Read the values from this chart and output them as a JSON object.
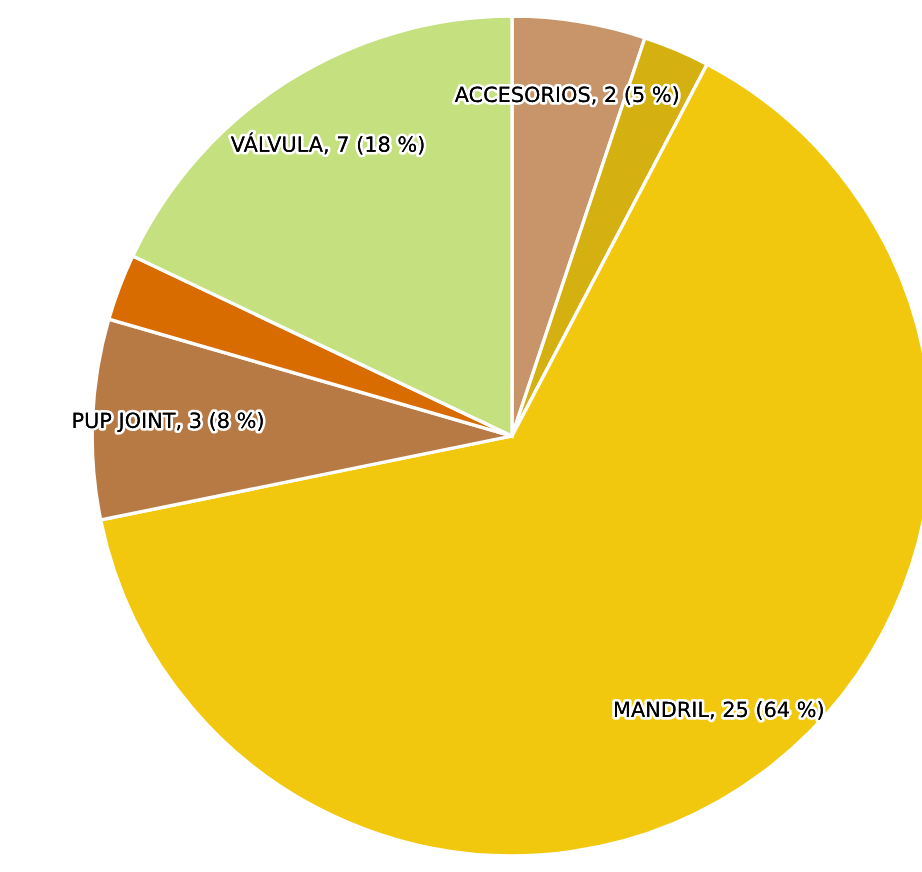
{
  "chart_data": {
    "type": "pie",
    "categories": [
      null,
      null,
      null,
      null,
      null,
      null
    ],
    "values": [
      2,
      1,
      25,
      3,
      1,
      7
    ],
    "colors": [
      "#c8946a",
      "#d4b010",
      "#f2c80f",
      "#b87a45",
      "#d96c00",
      "#c5e07f"
    ],
    "value_labels": [
      "ACCESORIOS, 2 (5 %)",
      null,
      "MANDRIL, 25 (64 %)",
      "PUP JOINT, 3 (8 %)",
      null,
      "VÁLVULA, 7 (18 %)"
    ]
  }
}
